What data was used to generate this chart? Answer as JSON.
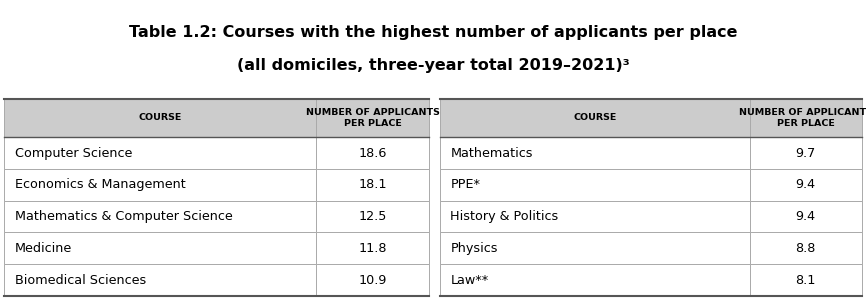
{
  "title_line1": "Table 1.2: Courses with the highest number of applicants per place",
  "title_line2": "(all domiciles, three-year total 2019–2021)³",
  "header_col1": "COURSE",
  "header_col2": "NUMBER OF APPLICANTS\nPER PLACE",
  "left_courses": [
    "Computer Science",
    "Economics & Management",
    "Mathematics & Computer Science",
    "Medicine",
    "Biomedical Sciences"
  ],
  "left_values": [
    "18.6",
    "18.1",
    "12.5",
    "11.8",
    "10.9"
  ],
  "right_courses": [
    "Mathematics",
    "PPE*",
    "History & Politics",
    "Physics",
    "Law**"
  ],
  "right_values": [
    "9.7",
    "9.4",
    "9.4",
    "8.8",
    "8.1"
  ],
  "header_bg": "#cccccc",
  "row_bg": "#ffffff",
  "border_color": "#aaaaaa",
  "thick_border_color": "#555555",
  "title_color": "#000000",
  "header_text_color": "#000000",
  "cell_text_color": "#000000",
  "bg_color": "#ffffff",
  "title_fontsize": 11.5,
  "header_fontsize": 6.8,
  "cell_fontsize": 9.2,
  "fig_width": 8.66,
  "fig_height": 2.99,
  "dpi": 100
}
